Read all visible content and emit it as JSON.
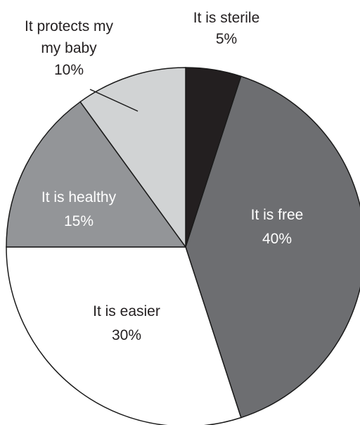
{
  "chart_data": {
    "type": "pie",
    "start_angle_deg": 0,
    "direction": "clockwise",
    "slices": [
      {
        "label": "It is sterile",
        "value": 5,
        "value_text": "5%",
        "color": "#231f20",
        "text_color": "#231f20"
      },
      {
        "label": "It is free",
        "value": 40,
        "value_text": "40%",
        "color": "#6d6e71",
        "text_color": "#ffffff"
      },
      {
        "label": "It is easier",
        "value": 30,
        "value_text": "30%",
        "color": "#ffffff",
        "text_color": "#231f20"
      },
      {
        "label": "It is healthy",
        "value": 15,
        "value_text": "15%",
        "color": "#939598",
        "text_color": "#ffffff"
      },
      {
        "label_lines": [
          "It protects my",
          "my baby"
        ],
        "value": 10,
        "value_text": "10%",
        "color": "#d1d3d4",
        "text_color": "#231f20"
      }
    ]
  }
}
